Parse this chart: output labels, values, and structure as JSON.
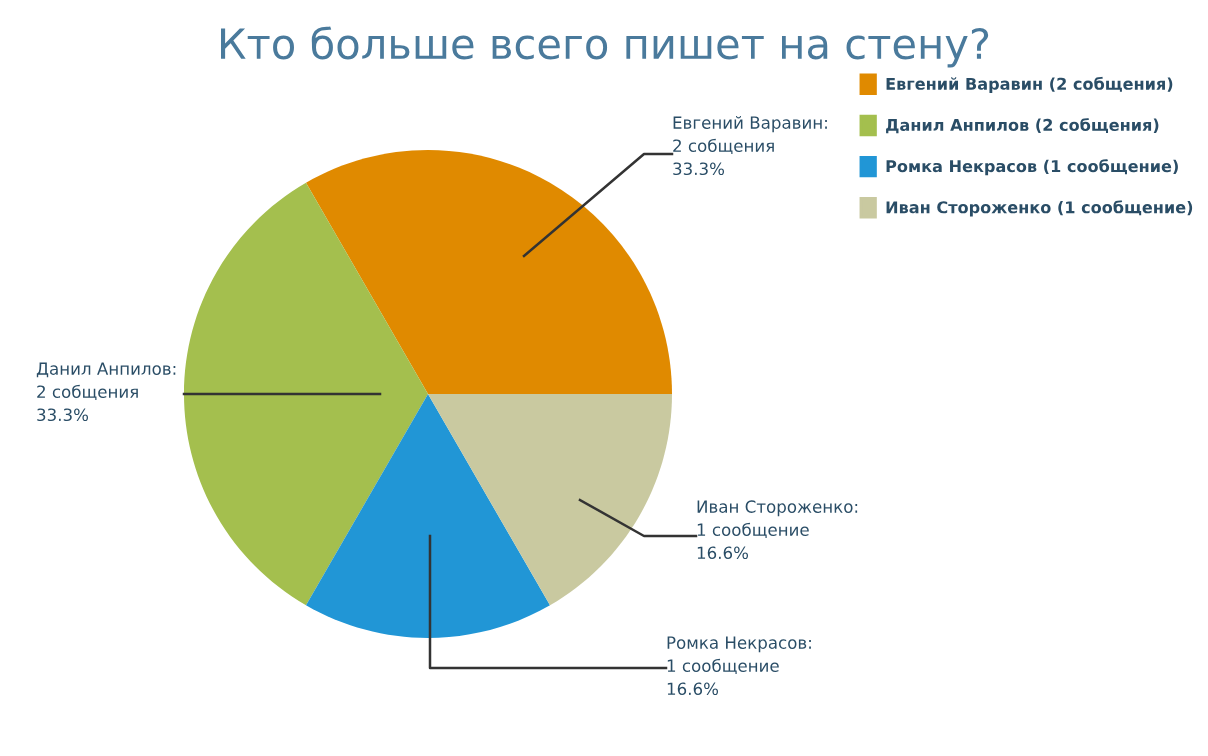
{
  "chart_data": {
    "type": "pie",
    "title": "Кто больше всего пишет на стену?",
    "categories": [
      "Евгений Варавин (2 собщения)",
      "Данил Анпилов (2 собщения)",
      "Ромка Некрасов (1 сообщение)",
      "Иван Стороженко (1 сообщение)"
    ],
    "values": [
      2,
      2,
      1,
      1
    ],
    "colors": [
      "#e08a00",
      "#a4bf4e",
      "#2196d6",
      "#c9c9a0"
    ],
    "value_labels": [
      "Евгений Варавин:\n2 собщения\n33.3%",
      "Данил Анпилов:\n2 собщения\n33.3%",
      "Ромка Некрасов:\n1 сообщение\n16.6%",
      "Иван Стороженко:\n1 сообщение\n16.6%"
    ],
    "legend": "top right"
  }
}
